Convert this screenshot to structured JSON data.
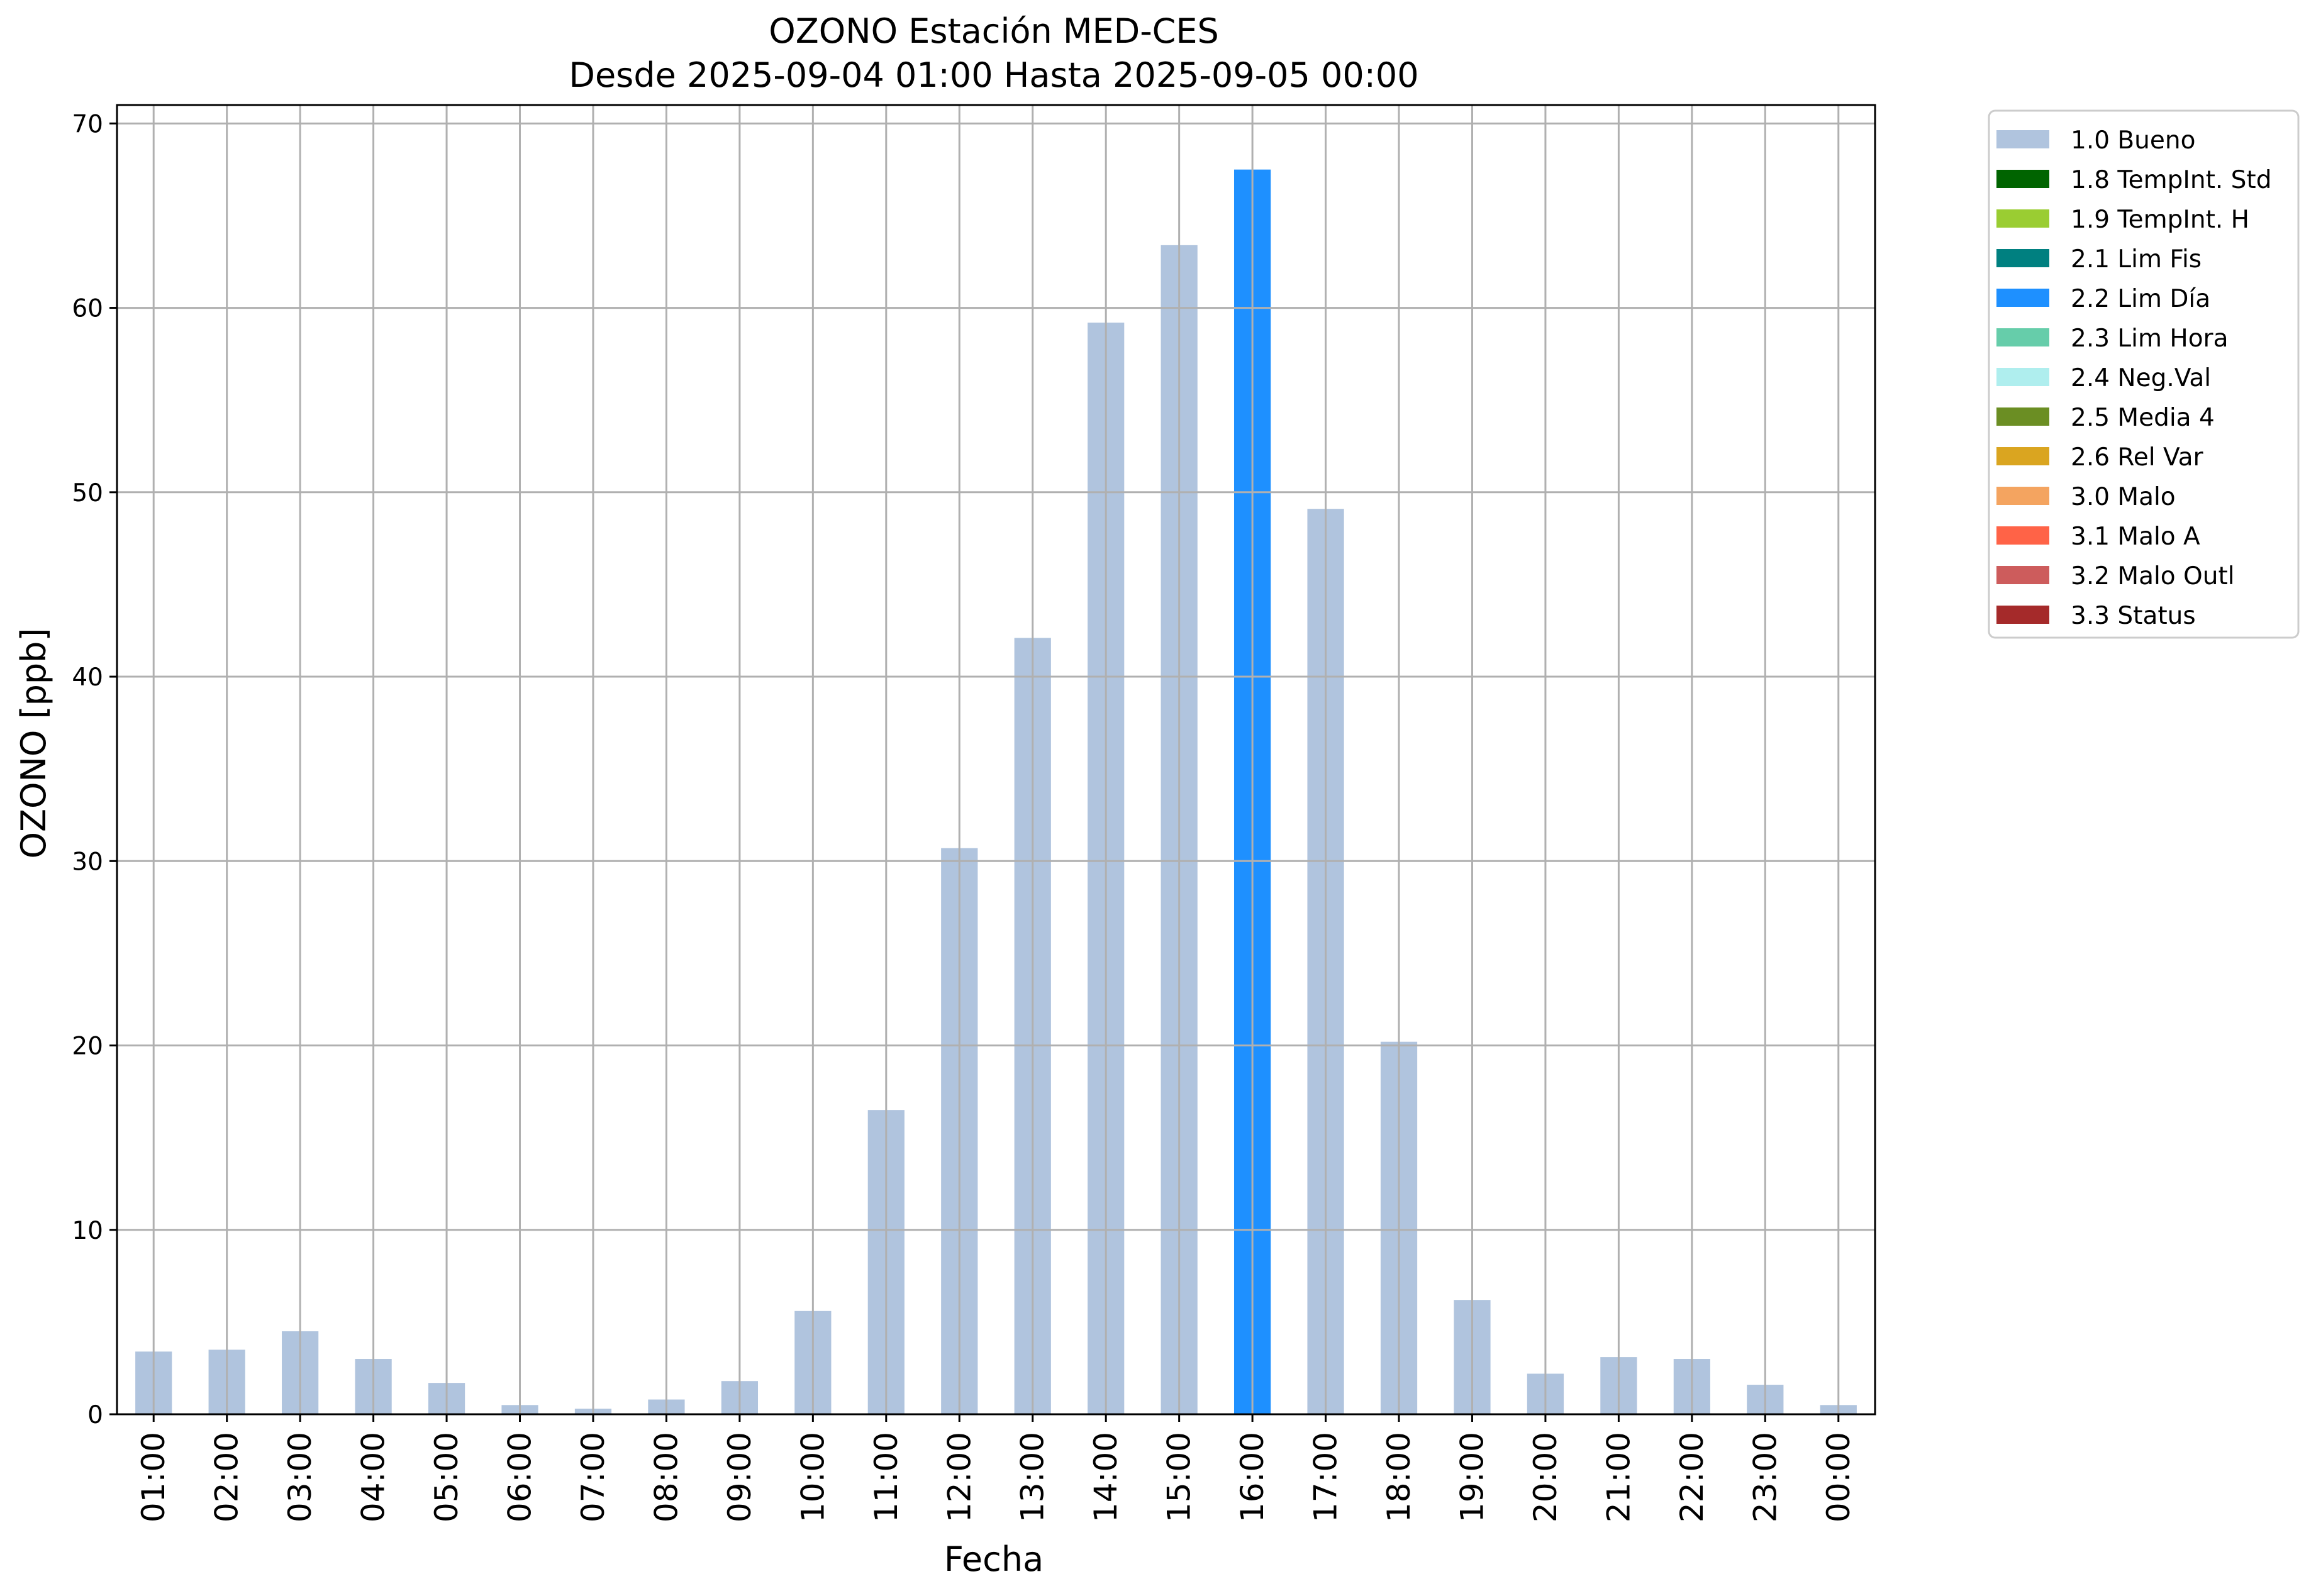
{
  "chart_data": {
    "type": "bar",
    "title": "OZONO Estación MED-CES",
    "subtitle": "Desde 2025-09-04 01:00 Hasta 2025-09-05 00:00",
    "xlabel": "Fecha",
    "ylabel": "OZONO [ppb]",
    "ylim": [
      0,
      71
    ],
    "yticks": [
      0,
      10,
      20,
      30,
      40,
      50,
      60,
      70
    ],
    "grid": true,
    "legend_placement": "outside-top-right",
    "categories": [
      "01:00",
      "02:00",
      "03:00",
      "04:00",
      "05:00",
      "06:00",
      "07:00",
      "08:00",
      "09:00",
      "10:00",
      "11:00",
      "12:00",
      "13:00",
      "14:00",
      "15:00",
      "16:00",
      "17:00",
      "18:00",
      "19:00",
      "20:00",
      "21:00",
      "22:00",
      "23:00",
      "00:00"
    ],
    "values": [
      3.4,
      3.5,
      4.5,
      3.0,
      1.7,
      0.5,
      0.3,
      0.8,
      1.8,
      5.6,
      16.5,
      30.7,
      42.1,
      59.2,
      63.4,
      67.5,
      49.1,
      20.2,
      6.2,
      2.2,
      3.1,
      3.0,
      1.6,
      0.5
    ],
    "flags": [
      "1.0 Bueno",
      "1.0 Bueno",
      "1.0 Bueno",
      "1.0 Bueno",
      "1.0 Bueno",
      "1.0 Bueno",
      "1.0 Bueno",
      "1.0 Bueno",
      "1.0 Bueno",
      "1.0 Bueno",
      "1.0 Bueno",
      "1.0 Bueno",
      "1.0 Bueno",
      "1.0 Bueno",
      "1.0 Bueno",
      "2.2 Lim Día",
      "1.0 Bueno",
      "1.0 Bueno",
      "1.0 Bueno",
      "1.0 Bueno",
      "1.0 Bueno",
      "1.0 Bueno",
      "1.0 Bueno",
      "1.0 Bueno"
    ],
    "legend": [
      {
        "label": "1.0 Bueno",
        "color": "#b0c4de"
      },
      {
        "label": "1.8 TempInt. Std",
        "color": "#006400"
      },
      {
        "label": "1.9 TempInt. H",
        "color": "#9acd32"
      },
      {
        "label": "2.1 Lim Fis",
        "color": "#008080"
      },
      {
        "label": "2.2 Lim Día",
        "color": "#1e90ff"
      },
      {
        "label": "2.3 Lim Hora",
        "color": "#66cdaa"
      },
      {
        "label": "2.4 Neg.Val",
        "color": "#afeeee"
      },
      {
        "label": "2.5 Media 4",
        "color": "#6b8e23"
      },
      {
        "label": "2.6 Rel Var",
        "color": "#daa520"
      },
      {
        "label": "3.0 Malo",
        "color": "#f4a460"
      },
      {
        "label": "3.1 Malo A",
        "color": "#ff6347"
      },
      {
        "label": "3.2 Malo Outl",
        "color": "#cd5c5c"
      },
      {
        "label": "3.3 Status",
        "color": "#a52a2a"
      }
    ],
    "colors": {
      "grid": "#b0b0b0",
      "axes": "#000000",
      "background": "#ffffff"
    }
  }
}
